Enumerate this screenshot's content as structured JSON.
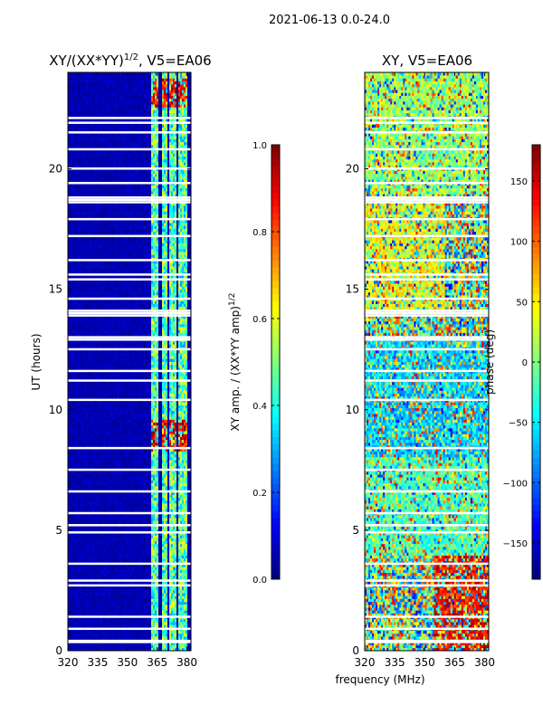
{
  "suptitle": "2021-06-13 0.0-24.0",
  "colors": {
    "jet": [
      "#00007f",
      "#0000ff",
      "#007fff",
      "#00ffff",
      "#7fff7f",
      "#ffff00",
      "#ff7f00",
      "#ff0000",
      "#7f0000"
    ],
    "gap": "#ffffff"
  },
  "chart_data": [
    {
      "type": "heatmap",
      "title_prefix": "XY/(XX*YY)",
      "title_exp": "1/2",
      "title_suffix": ", V5=EA06",
      "xlabel": "",
      "ylabel": "UT (hours)",
      "xlim": [
        320,
        382
      ],
      "ylim": [
        0,
        24
      ],
      "xticks": [
        320,
        335,
        350,
        365,
        380
      ],
      "yticks": [
        0,
        5,
        10,
        15,
        20
      ],
      "colorbar": {
        "label": "XY amp. / (XX*YY amp)",
        "label_exp": "1/2",
        "range": [
          0.0,
          1.0
        ],
        "ticks": [
          "0.0",
          "0.2",
          "0.4",
          "0.6",
          "0.8",
          "1.0"
        ],
        "tick_values": [
          0.0,
          0.2,
          0.4,
          0.6,
          0.8,
          1.0
        ]
      },
      "background_level": 0.02,
      "signal_bands_MHz": [
        [
          362,
          366
        ],
        [
          367,
          370
        ],
        [
          371,
          375
        ],
        [
          376,
          380
        ]
      ],
      "signal_level_typical": 0.45,
      "high_amplitude_UT_ranges": [
        [
          8.3,
          9.6
        ],
        [
          22.6,
          23.8
        ]
      ],
      "flagged_UT_rows": [
        0.35,
        0.4,
        0.9,
        1.4,
        2.7,
        2.9,
        3.6,
        4.9,
        5.2,
        5.7,
        6.6,
        7.5,
        8.4,
        10.4,
        11.2,
        11.6,
        12.5,
        12.9,
        13.0,
        13.9,
        14.0,
        14.1,
        14.6,
        15.4,
        15.6,
        16.2,
        17.2,
        17.9,
        18.6,
        18.7,
        18.8,
        19.4,
        20.0,
        20.8,
        21.5,
        21.9,
        22.1
      ]
    },
    {
      "type": "heatmap",
      "title": "XY, V5=EA06",
      "xlabel": "frequency (MHz)",
      "ylabel": "",
      "xlim": [
        320,
        382
      ],
      "ylim": [
        0,
        24
      ],
      "xticks": [
        320,
        335,
        350,
        365,
        380
      ],
      "yticks": [
        0,
        5,
        10,
        15,
        20
      ],
      "colorbar": {
        "label": "phase (deg)",
        "range": [
          -180,
          180
        ],
        "ticks": [
          "−150",
          "−100",
          "−50",
          "0",
          "50",
          "100",
          "150"
        ],
        "tick_values": [
          -150,
          -100,
          -50,
          0,
          50,
          100,
          150
        ]
      },
      "phase_regions": [
        {
          "ut_range": [
            0,
            4
          ],
          "freq_range": [
            355,
            382
          ],
          "phase_deg": 140
        },
        {
          "ut_range": [
            4,
            8
          ],
          "freq_range": [
            320,
            382
          ],
          "phase_deg": -20
        },
        {
          "ut_range": [
            8,
            13
          ],
          "freq_range": [
            320,
            382
          ],
          "phase_deg": -60
        },
        {
          "ut_range": [
            14,
            19
          ],
          "freq_range": [
            320,
            360
          ],
          "phase_deg": 40
        },
        {
          "ut_range": [
            19,
            24
          ],
          "freq_range": [
            320,
            382
          ],
          "phase_deg": 10
        }
      ],
      "flagged_UT_rows": [
        0.35,
        0.4,
        0.9,
        1.4,
        2.7,
        2.9,
        3.6,
        4.9,
        5.2,
        5.7,
        6.6,
        7.5,
        8.4,
        10.4,
        11.2,
        11.6,
        12.5,
        12.9,
        13.0,
        13.9,
        14.0,
        14.1,
        14.6,
        15.4,
        15.6,
        16.2,
        17.2,
        17.9,
        18.6,
        18.7,
        18.8,
        19.4,
        20.0,
        20.8,
        21.5,
        21.9,
        22.1
      ]
    }
  ]
}
